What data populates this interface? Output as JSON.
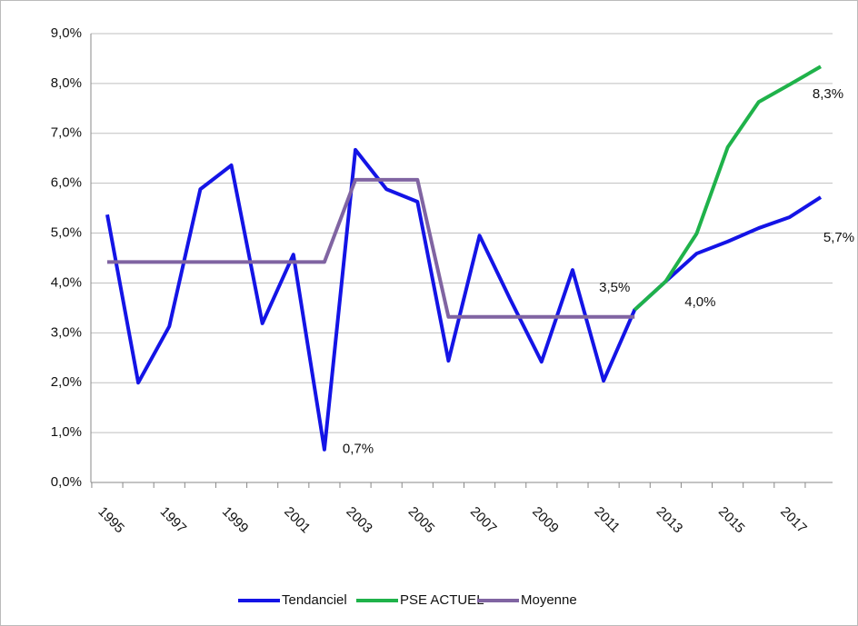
{
  "chart_data": {
    "type": "line",
    "categories": [
      "1995",
      null,
      "1997",
      null,
      "1999",
      null,
      "2001",
      null,
      "2003",
      null,
      "2005",
      null,
      "2007",
      null,
      "2009",
      null,
      "2011",
      null,
      "2013",
      null,
      "2015",
      null,
      "2017",
      null
    ],
    "series": [
      {
        "name": "Tendanciel",
        "color": "#1414e6",
        "values": [
          5.37,
          2.0,
          3.13,
          5.88,
          6.36,
          3.19,
          4.57,
          0.66,
          6.67,
          5.88,
          5.63,
          2.44,
          4.95,
          3.66,
          2.42,
          4.26,
          2.04,
          3.46,
          4.03,
          4.59,
          4.83,
          5.1,
          5.32,
          5.72
        ],
        "value_labels": [
          null,
          null,
          null,
          null,
          null,
          null,
          null,
          "0,7%",
          null,
          null,
          null,
          null,
          null,
          null,
          null,
          null,
          null,
          "3,5%",
          "4,0%",
          null,
          null,
          null,
          null,
          "5,7%"
        ]
      },
      {
        "name": "PSE ACTUEL",
        "color": "#1fb24a",
        "values": [
          null,
          null,
          null,
          null,
          null,
          null,
          null,
          null,
          null,
          null,
          null,
          null,
          null,
          null,
          null,
          null,
          null,
          3.46,
          4.03,
          4.99,
          6.72,
          7.63,
          7.98,
          8.34
        ],
        "value_labels": [
          null,
          null,
          null,
          null,
          null,
          null,
          null,
          null,
          null,
          null,
          null,
          null,
          null,
          null,
          null,
          null,
          null,
          null,
          null,
          null,
          null,
          null,
          null,
          "8,3%"
        ]
      },
      {
        "name": "Moyenne",
        "color": "#8064a2",
        "values": [
          4.42,
          4.42,
          4.42,
          4.42,
          4.42,
          4.42,
          4.42,
          4.42,
          6.07,
          6.07,
          6.07,
          3.32,
          3.32,
          3.32,
          3.32,
          3.32,
          3.32,
          3.32,
          null,
          null,
          null,
          null,
          null,
          null
        ]
      }
    ],
    "ylim": [
      0,
      9
    ],
    "yticks": [
      {
        "value": 0,
        "label": "0,0%"
      },
      {
        "value": 1,
        "label": "1,0%"
      },
      {
        "value": 2,
        "label": "2,0%"
      },
      {
        "value": 3,
        "label": "3,0%"
      },
      {
        "value": 4,
        "label": "4,0%"
      },
      {
        "value": 5,
        "label": "5,0%"
      },
      {
        "value": 6,
        "label": "6,0%"
      },
      {
        "value": 7,
        "label": "7,0%"
      },
      {
        "value": 8,
        "label": "8,0%"
      },
      {
        "value": 9,
        "label": "9,0%"
      }
    ],
    "grid": true,
    "legend": "bottom"
  }
}
